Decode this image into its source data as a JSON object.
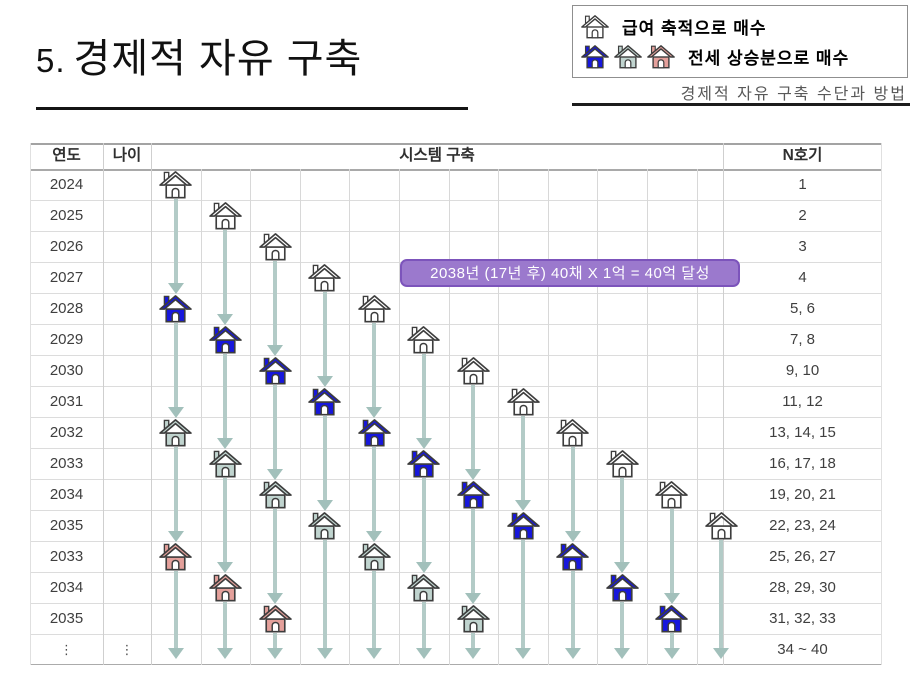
{
  "title": {
    "number": "5.",
    "text": "경제적 자유 구축"
  },
  "legend": {
    "salary": {
      "label": "급여 축적으로 매수",
      "icons": [
        "salary"
      ]
    },
    "jeonse": {
      "label": "전세 상승분으로 매수",
      "icons": [
        "jeonse-blue",
        "jeonse-green",
        "jeonse-pink"
      ]
    },
    "caption": "경제적 자유 구축 수단과 방법"
  },
  "callout": {
    "text": "2038년 (17년 후) 40채 X 1억 = 40억 달성",
    "row": 3
  },
  "table": {
    "headers": {
      "year": "연도",
      "age": "나이",
      "system": "시스템 구축",
      "units": "N호기"
    },
    "rows": [
      {
        "year": "2024",
        "age": "",
        "units": "1"
      },
      {
        "year": "2025",
        "age": "",
        "units": "2"
      },
      {
        "year": "2026",
        "age": "",
        "units": "3"
      },
      {
        "year": "2027",
        "age": "",
        "units": "4"
      },
      {
        "year": "2028",
        "age": "",
        "units": "5, 6"
      },
      {
        "year": "2029",
        "age": "",
        "units": "7, 8"
      },
      {
        "year": "2030",
        "age": "",
        "units": "9, 10"
      },
      {
        "year": "2031",
        "age": "",
        "units": "11, 12"
      },
      {
        "year": "2032",
        "age": "",
        "units": "13, 14, 15"
      },
      {
        "year": "2033",
        "age": "",
        "units": "16, 17, 18"
      },
      {
        "year": "2034",
        "age": "",
        "units": "19, 20, 21"
      },
      {
        "year": "2035",
        "age": "",
        "units": "22, 23, 24"
      },
      {
        "year": "2033",
        "age": "",
        "units": "25, 26, 27"
      },
      {
        "year": "2034",
        "age": "",
        "units": "28, 29, 30"
      },
      {
        "year": "2035",
        "age": "",
        "units": "31, 32, 33"
      },
      {
        "year": "⋮",
        "age": "⋮",
        "units": "34 ~ 40",
        "dots": true
      }
    ]
  },
  "houses": {
    "colors": {
      "salary": "#ffffff",
      "jeonse-blue": "#1717dd",
      "jeonse-green": "#c0d4cf",
      "jeonse-pink": "#e4a09b"
    },
    "columns": [
      {
        "col": 1,
        "stages": [
          {
            "row": 0,
            "type": "salary"
          },
          {
            "row": 4,
            "type": "jeonse-blue"
          },
          {
            "row": 8,
            "type": "jeonse-green"
          },
          {
            "row": 12,
            "type": "jeonse-pink"
          }
        ]
      },
      {
        "col": 2,
        "stages": [
          {
            "row": 1,
            "type": "salary"
          },
          {
            "row": 5,
            "type": "jeonse-blue"
          },
          {
            "row": 9,
            "type": "jeonse-green"
          },
          {
            "row": 13,
            "type": "jeonse-pink"
          }
        ]
      },
      {
        "col": 3,
        "stages": [
          {
            "row": 2,
            "type": "salary"
          },
          {
            "row": 6,
            "type": "jeonse-blue"
          },
          {
            "row": 10,
            "type": "jeonse-green"
          },
          {
            "row": 14,
            "type": "jeonse-pink"
          }
        ]
      },
      {
        "col": 4,
        "stages": [
          {
            "row": 3,
            "type": "salary"
          },
          {
            "row": 7,
            "type": "jeonse-blue"
          },
          {
            "row": 11,
            "type": "jeonse-green"
          }
        ]
      },
      {
        "col": 5,
        "stages": [
          {
            "row": 4,
            "type": "salary"
          },
          {
            "row": 8,
            "type": "jeonse-blue"
          },
          {
            "row": 12,
            "type": "jeonse-green"
          }
        ]
      },
      {
        "col": 6,
        "stages": [
          {
            "row": 5,
            "type": "salary"
          },
          {
            "row": 9,
            "type": "jeonse-blue"
          },
          {
            "row": 13,
            "type": "jeonse-green"
          }
        ]
      },
      {
        "col": 7,
        "stages": [
          {
            "row": 6,
            "type": "salary"
          },
          {
            "row": 10,
            "type": "jeonse-blue"
          },
          {
            "row": 14,
            "type": "jeonse-green"
          }
        ]
      },
      {
        "col": 8,
        "stages": [
          {
            "row": 7,
            "type": "salary"
          },
          {
            "row": 11,
            "type": "jeonse-blue"
          }
        ]
      },
      {
        "col": 9,
        "stages": [
          {
            "row": 8,
            "type": "salary"
          },
          {
            "row": 12,
            "type": "jeonse-blue"
          }
        ]
      },
      {
        "col": 10,
        "stages": [
          {
            "row": 9,
            "type": "salary"
          },
          {
            "row": 13,
            "type": "jeonse-blue"
          }
        ]
      },
      {
        "col": 11,
        "stages": [
          {
            "row": 10,
            "type": "salary"
          },
          {
            "row": 14,
            "type": "jeonse-blue"
          }
        ]
      },
      {
        "col": 12,
        "stages": [
          {
            "row": 11,
            "type": "salary"
          }
        ]
      }
    ]
  },
  "colors": {
    "outline": "#3d3d3d",
    "arrow_line": "#b3cbc7",
    "arrow_head": "#a2c0bb",
    "grid_line": "#dcdcdc",
    "grid_line_v": "#cfcfcf",
    "header_line": "#a9a9a9",
    "table_border": "#a3a3a3",
    "callout_bg": "#9b79cd",
    "callout_border": "#7c54bb"
  }
}
